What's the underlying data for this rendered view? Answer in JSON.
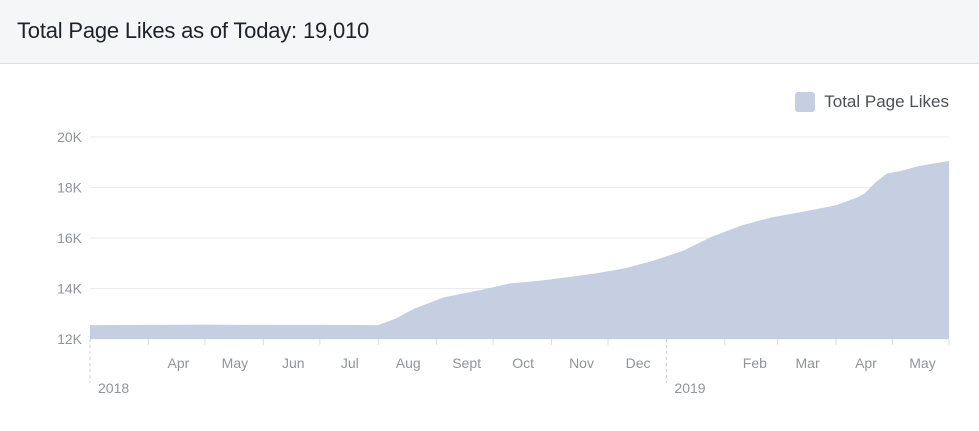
{
  "header": {
    "title": "Total Page Likes as of Today:",
    "value": "19,010"
  },
  "colors": {
    "area": "#c6cfe1",
    "gridline": "#e9ebee",
    "tick_text": "#90949c",
    "axis_text": "#606770"
  },
  "chart_data": {
    "type": "area",
    "series": [
      {
        "name": "Total Page Likes",
        "points": [
          [
            "2018-03-01",
            12550
          ],
          [
            "2018-04-01",
            12560
          ],
          [
            "2018-05-01",
            12570
          ],
          [
            "2018-06-01",
            12560
          ],
          [
            "2018-07-01",
            12560
          ],
          [
            "2018-08-01",
            12550
          ],
          [
            "2018-08-10",
            12800
          ],
          [
            "2018-08-20",
            13200
          ],
          [
            "2018-09-05",
            13650
          ],
          [
            "2018-09-25",
            13950
          ],
          [
            "2018-10-10",
            14200
          ],
          [
            "2018-10-25",
            14300
          ],
          [
            "2018-11-10",
            14450
          ],
          [
            "2018-11-25",
            14600
          ],
          [
            "2018-12-10",
            14800
          ],
          [
            "2018-12-25",
            15100
          ],
          [
            "2019-01-10",
            15500
          ],
          [
            "2019-01-25",
            16050
          ],
          [
            "2019-02-10",
            16500
          ],
          [
            "2019-02-25",
            16800
          ],
          [
            "2019-03-15",
            17050
          ],
          [
            "2019-04-01",
            17300
          ],
          [
            "2019-04-12",
            17600
          ],
          [
            "2019-04-16",
            17750
          ],
          [
            "2019-04-22",
            18200
          ],
          [
            "2019-04-28",
            18550
          ],
          [
            "2019-05-05",
            18650
          ],
          [
            "2019-05-15",
            18850
          ],
          [
            "2019-05-31",
            19050
          ]
        ]
      }
    ],
    "x_range": [
      "2018-03-01",
      "2019-05-31"
    ],
    "y_range": [
      12000,
      20000
    ],
    "y_ticks": [
      {
        "value": 12000,
        "label": "12K"
      },
      {
        "value": 14000,
        "label": "14K"
      },
      {
        "value": 16000,
        "label": "16K"
      },
      {
        "value": 18000,
        "label": "18K"
      },
      {
        "value": 20000,
        "label": "20K"
      }
    ],
    "x_ticks": [
      {
        "date": "2018-04-01",
        "label": "Apr"
      },
      {
        "date": "2018-05-01",
        "label": "May"
      },
      {
        "date": "2018-06-01",
        "label": "Jun"
      },
      {
        "date": "2018-07-01",
        "label": "Jul"
      },
      {
        "date": "2018-08-01",
        "label": "Aug"
      },
      {
        "date": "2018-09-01",
        "label": "Sept"
      },
      {
        "date": "2018-10-01",
        "label": "Oct"
      },
      {
        "date": "2018-11-01",
        "label": "Nov"
      },
      {
        "date": "2018-12-01",
        "label": "Dec"
      },
      {
        "date": "2019-02-01",
        "label": "Feb"
      },
      {
        "date": "2019-03-01",
        "label": "Mar"
      },
      {
        "date": "2019-04-01",
        "label": "Apr"
      },
      {
        "date": "2019-05-01",
        "label": "May"
      }
    ],
    "year_markers": [
      {
        "date": "2018-03-01",
        "label": "2018"
      },
      {
        "date": "2019-01-01",
        "label": "2019"
      }
    ],
    "grid": true,
    "legend": "top-right"
  }
}
